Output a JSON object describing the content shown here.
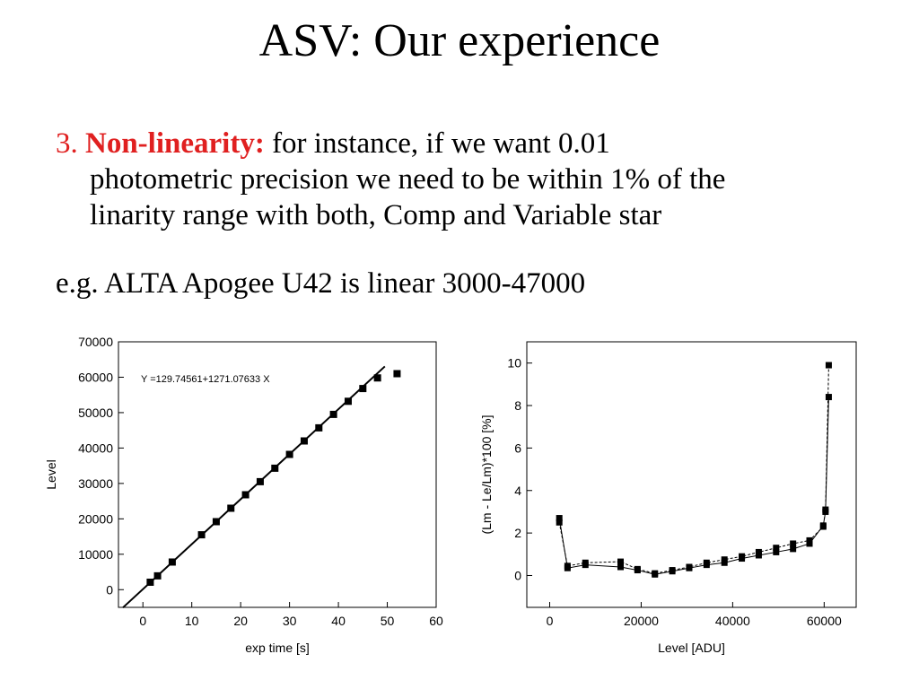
{
  "slide": {
    "title": "ASV: Our experience",
    "bullet1": {
      "number": "3.",
      "keyword": "Non-linearity:",
      "line1": " for instance, if we want 0.01",
      "line2": "photometric precision we need to be within 1% of the",
      "line3": "linarity range with both, Comp and Variable star"
    },
    "bullet2": "e.g. ALTA Apogee U42 is linear 3000-47000"
  },
  "chart_data": [
    {
      "type": "scatter",
      "xlabel": "exp time [s]",
      "ylabel": "Level",
      "xlim": [
        -5,
        60
      ],
      "ylim": [
        -5000,
        70000
      ],
      "xticks": [
        0,
        10,
        20,
        30,
        40,
        50,
        60
      ],
      "yticks": [
        0,
        10000,
        20000,
        30000,
        40000,
        50000,
        60000,
        70000
      ],
      "annotation": "Y =129.74561+1271.07633 X",
      "fit": {
        "intercept": 129.74561,
        "slope": 1271.07633
      },
      "x": [
        1.5,
        3,
        6,
        12,
        15,
        18,
        21,
        24,
        27,
        30,
        33,
        36,
        39,
        42,
        45,
        48,
        52
      ],
      "y": [
        2100,
        3900,
        7800,
        15500,
        19200,
        23000,
        26800,
        30500,
        34300,
        38200,
        42000,
        45700,
        49500,
        53200,
        56800,
        59800,
        61000
      ]
    },
    {
      "type": "line",
      "xlabel": "Level [ADU]",
      "ylabel": "(Lm - Le/Lm)*100 [%]",
      "xlim": [
        -5000,
        67000
      ],
      "ylim": [
        -1.5,
        11
      ],
      "xticks": [
        0,
        20000,
        40000,
        60000
      ],
      "yticks": [
        0,
        2,
        4,
        6,
        8,
        10
      ],
      "series": [
        {
          "x": [
            2100,
            3900,
            7800,
            15500,
            19200,
            23000,
            26800,
            30500,
            34300,
            38200,
            42000,
            45700,
            49500,
            53200,
            56800,
            59800,
            60300,
            61000
          ],
          "y": [
            2.7,
            0.35,
            0.5,
            0.4,
            0.25,
            0.05,
            0.2,
            0.35,
            0.5,
            0.6,
            0.8,
            0.95,
            1.1,
            1.25,
            1.5,
            2.35,
            3.0,
            8.4
          ]
        },
        {
          "x": [
            2100,
            3900,
            7800,
            15500,
            19200,
            23000,
            26800,
            30500,
            34300,
            38200,
            42000,
            45700,
            49500,
            53200,
            56800,
            59800,
            60300,
            61000
          ],
          "y": [
            2.5,
            0.45,
            0.6,
            0.65,
            0.3,
            0.1,
            0.25,
            0.4,
            0.6,
            0.75,
            0.9,
            1.1,
            1.3,
            1.5,
            1.65,
            2.3,
            3.1,
            9.9
          ]
        }
      ]
    }
  ]
}
